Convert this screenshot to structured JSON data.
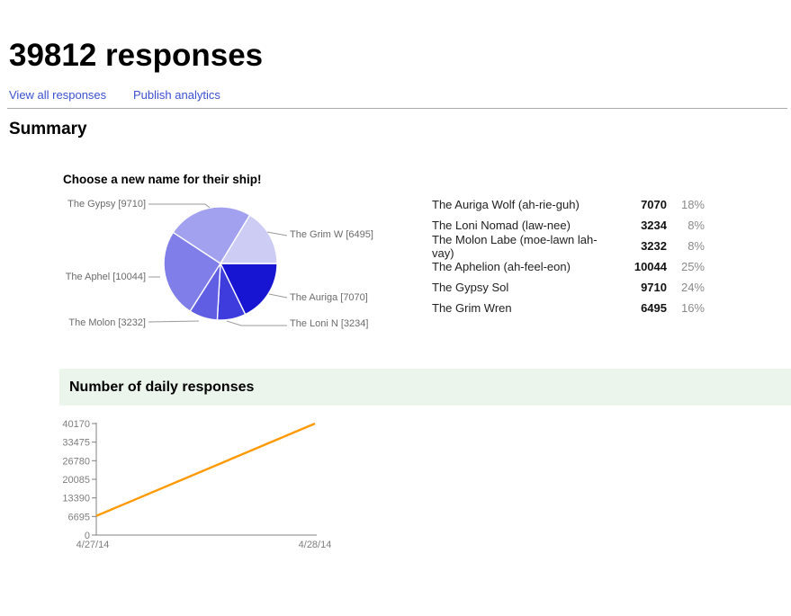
{
  "header": {
    "title": "39812 responses"
  },
  "nav": {
    "view_all_label": "View all responses",
    "publish_label": "Publish analytics"
  },
  "summary": {
    "heading": "Summary"
  },
  "question": {
    "title": "Choose a new name for their ship!",
    "rows": [
      {
        "label": "The Auriga Wolf (ah-rie-guh)",
        "count": "7070",
        "pct": "18%"
      },
      {
        "label": "The Loni Nomad (law-nee)",
        "count": "3234",
        "pct": "8%"
      },
      {
        "label": "The Molon Labe (moe-lawn lah-vay)",
        "count": "3232",
        "pct": "8%"
      },
      {
        "label": "The Aphelion (ah-feel-eon)",
        "count": "10044",
        "pct": "25%"
      },
      {
        "label": "The Gypsy Sol",
        "count": "9710",
        "pct": "24%"
      },
      {
        "label": "The Grim Wren",
        "count": "6495",
        "pct": "16%"
      }
    ]
  },
  "daily": {
    "title": "Number of daily responses"
  },
  "chart_data": [
    {
      "type": "pie",
      "title": "Choose a new name for their ship!",
      "labels": [
        "The Auriga Wolf (ah-rie-guh)",
        "The Loni Nomad (law-nee)",
        "The Molon Labe (moe-lawn lah-vay)",
        "The Aphelion (ah-feel-eon)",
        "The Gypsy Sol",
        "The Grim Wren"
      ],
      "values": [
        7070,
        3234,
        3232,
        10044,
        9710,
        6495
      ],
      "percents": [
        18,
        8,
        8,
        25,
        24,
        16
      ],
      "colors": [
        "#1715d2",
        "#3e3cdc",
        "#605ee3",
        "#807ee8",
        "#a2a1ef",
        "#cdccf5"
      ],
      "start_angle_deg": 0,
      "direction": "clockwise",
      "point_labels": {
        "gypsy": "The Gypsy [9710]",
        "grim": "The Grim W [6495]",
        "aphel": "The Aphel [10044]",
        "auriga": "The Auriga [7070]",
        "molon": "The Molon [3232]",
        "loni": "The Loni N [3234]"
      }
    },
    {
      "type": "line",
      "title": "Number of daily responses",
      "x": [
        "4/27/14",
        "4/28/14"
      ],
      "series": [
        {
          "name": "responses",
          "values": [
            6900,
            40170
          ]
        }
      ],
      "yticks": [
        0,
        6695,
        13390,
        20085,
        26780,
        33475,
        40170
      ],
      "ylim": [
        0,
        40170
      ],
      "grid": false,
      "legend": "none",
      "line_color": "#ff9900",
      "axis_color": "#808080",
      "tick_label_color": "#7e7e7e"
    }
  ],
  "colors": {
    "link": "#3b50cf",
    "banner_bg": "#ebf5eb",
    "pie_callout": "#9a9a9a"
  }
}
